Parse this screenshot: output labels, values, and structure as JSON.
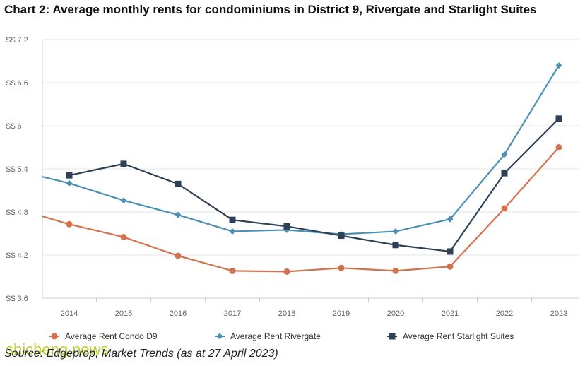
{
  "title": "Chart 2: Average monthly rents for condominiums in District 9, Rivergate and Starlight Suites",
  "source": "Source: Edgeprop, Market Trends (as at 27 April 2023)",
  "watermark": "shicheng.news",
  "colors": {
    "condo_d9": "#d2714e",
    "rivergate": "#4a90b5",
    "starlight": "#2e4057",
    "grid": "#e6e6e6",
    "axis": "#cccccc",
    "tick_text": "#666666"
  },
  "chart_data": {
    "type": "line",
    "title": "Chart 2: Average monthly rents for condominiums in District 9, Rivergate and Starlight Suites",
    "xlabel": "",
    "ylabel": "",
    "x": [
      "2014",
      "2015",
      "2016",
      "2017",
      "2018",
      "2019",
      "2020",
      "2021",
      "2022",
      "2023"
    ],
    "ylim": [
      3.6,
      7.2
    ],
    "yticks": [
      3.6,
      4.2,
      4.8,
      5.4,
      6,
      6.6,
      7.2
    ],
    "ytick_labels": [
      "S$ 3.6",
      "S$ 4.2",
      "S$ 4.8",
      "S$ 5.4",
      "S$ 6",
      "S$ 6.6",
      "S$ 7.2"
    ],
    "grid": true,
    "legend_position": "bottom",
    "series": [
      {
        "name": "Average Rent Condo D9",
        "marker": "circle",
        "color": "#d2714e",
        "left_edge_value": 4.74,
        "values": [
          4.63,
          4.45,
          4.19,
          3.98,
          3.97,
          4.02,
          3.98,
          4.04,
          4.85,
          5.7
        ]
      },
      {
        "name": "Average Rent Rivergate",
        "marker": "diamond",
        "color": "#4a90b5",
        "left_edge_value": 5.29,
        "values": [
          5.2,
          4.96,
          4.76,
          4.53,
          4.55,
          4.49,
          4.53,
          4.7,
          5.6,
          6.84
        ]
      },
      {
        "name": "Average Rent Starlight Suites",
        "marker": "square",
        "color": "#2e4057",
        "values": [
          5.31,
          5.47,
          5.19,
          4.69,
          4.6,
          4.47,
          4.34,
          4.25,
          5.34,
          6.1
        ]
      }
    ]
  }
}
